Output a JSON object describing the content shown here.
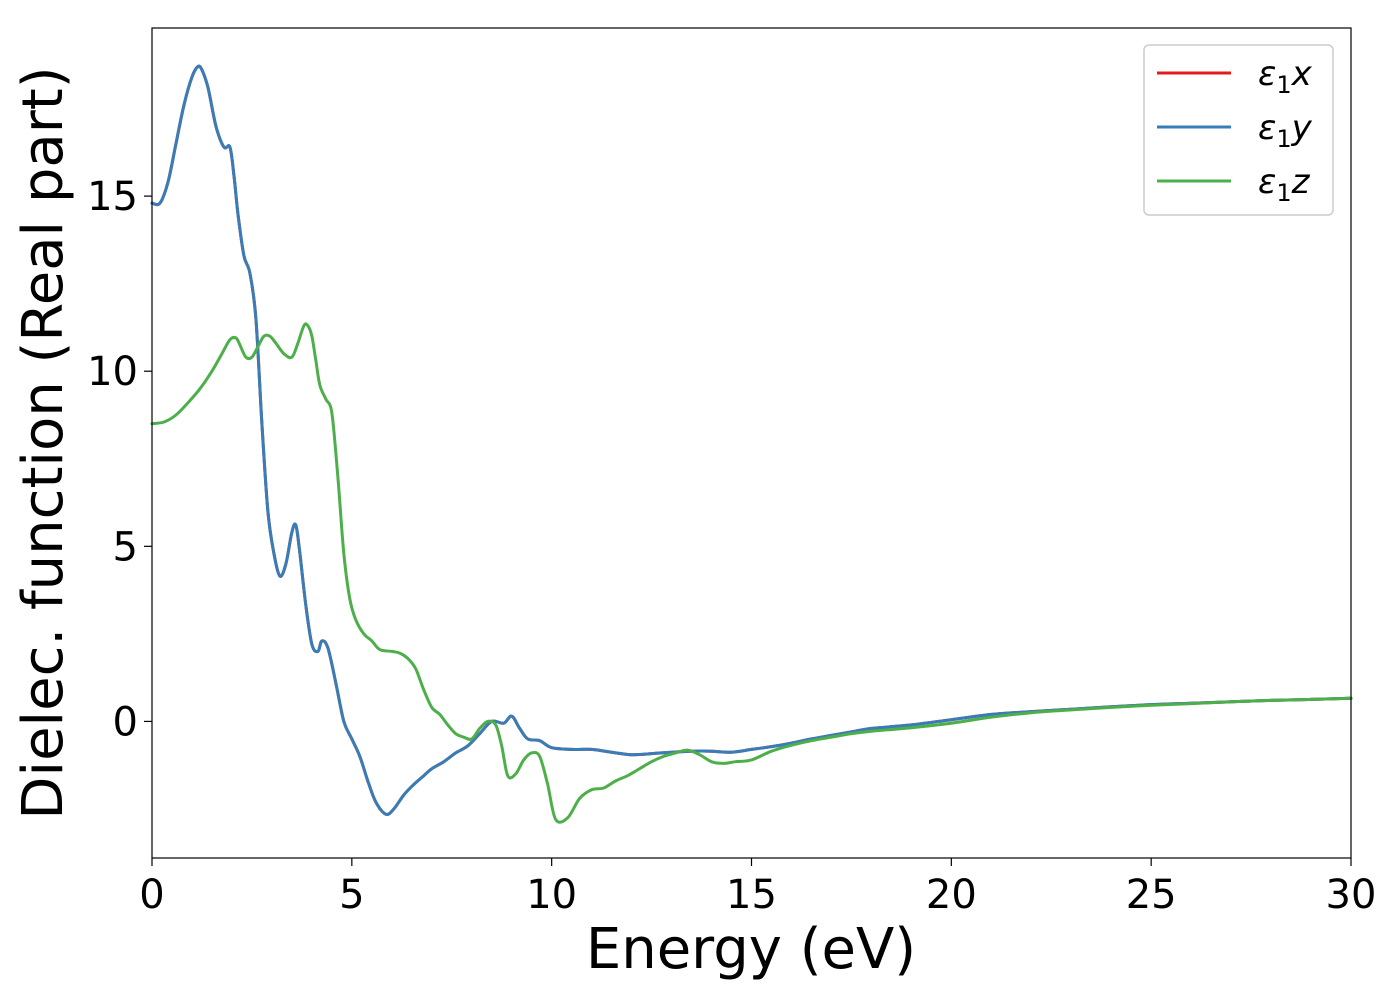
{
  "chart_data": {
    "type": "line",
    "xlabel": "Energy (eV)",
    "ylabel": "Dielec. function (Real part)",
    "xlim": [
      0,
      30
    ],
    "ylim": [
      -3.9,
      19.8
    ],
    "xticks": [
      0,
      5,
      10,
      15,
      20,
      25,
      30
    ],
    "yticks": [
      0,
      5,
      10,
      15
    ],
    "grid": false,
    "legend_position": "top-right",
    "series": [
      {
        "name": "ε1x",
        "name_base": "ε",
        "name_sub": "1",
        "name_tail": "x",
        "color": "#e41a1c",
        "x": [
          0,
          0.2,
          0.4,
          0.6,
          0.8,
          1.0,
          1.15,
          1.25,
          1.4,
          1.6,
          1.8,
          1.95,
          2.05,
          2.15,
          2.3,
          2.45,
          2.6,
          2.75,
          2.9,
          3.05,
          3.2,
          3.35,
          3.5,
          3.6,
          3.7,
          3.85,
          4.0,
          4.15,
          4.25,
          4.4,
          4.6,
          4.8,
          5.0,
          5.2,
          5.4,
          5.6,
          5.85,
          6.05,
          6.3,
          6.55,
          6.8,
          7.0,
          7.3,
          7.6,
          7.9,
          8.2,
          8.5,
          8.8,
          9.0,
          9.2,
          9.4,
          9.7,
          10.0,
          10.5,
          11.0,
          11.5,
          12.0,
          12.5,
          13.0,
          13.5,
          14.0,
          14.5,
          15.0,
          15.5,
          16.0,
          16.5,
          17.0,
          17.5,
          18.0,
          19.0,
          20.0,
          21.0,
          22.0,
          23.0,
          24.0,
          25.0,
          26.0,
          27.0,
          28.0,
          29.0,
          30.0
        ],
        "y": [
          14.8,
          14.8,
          15.4,
          16.5,
          17.6,
          18.4,
          18.7,
          18.6,
          18.1,
          17.0,
          16.4,
          16.4,
          15.6,
          14.5,
          13.3,
          12.8,
          11.5,
          8.5,
          6.0,
          4.8,
          4.15,
          4.5,
          5.4,
          5.6,
          4.8,
          3.3,
          2.2,
          2.0,
          2.3,
          2.1,
          1.1,
          0.0,
          -0.5,
          -1.0,
          -1.7,
          -2.3,
          -2.65,
          -2.5,
          -2.1,
          -1.8,
          -1.55,
          -1.35,
          -1.15,
          -0.9,
          -0.7,
          -0.35,
          0.0,
          -0.05,
          0.15,
          -0.2,
          -0.5,
          -0.55,
          -0.75,
          -0.8,
          -0.8,
          -0.88,
          -0.95,
          -0.92,
          -0.88,
          -0.85,
          -0.85,
          -0.88,
          -0.8,
          -0.72,
          -0.62,
          -0.5,
          -0.4,
          -0.3,
          -0.2,
          -0.1,
          0.05,
          0.2,
          0.28,
          0.35,
          0.42,
          0.48,
          0.52,
          0.56,
          0.6,
          0.63,
          0.66
        ]
      },
      {
        "name": "ε1y",
        "name_base": "ε",
        "name_sub": "1",
        "name_tail": "y",
        "color": "#377eb8",
        "x": [
          0,
          0.2,
          0.4,
          0.6,
          0.8,
          1.0,
          1.15,
          1.25,
          1.4,
          1.6,
          1.8,
          1.95,
          2.05,
          2.15,
          2.3,
          2.45,
          2.6,
          2.75,
          2.9,
          3.05,
          3.2,
          3.35,
          3.5,
          3.6,
          3.7,
          3.85,
          4.0,
          4.15,
          4.25,
          4.4,
          4.6,
          4.8,
          5.0,
          5.2,
          5.4,
          5.6,
          5.85,
          6.05,
          6.3,
          6.55,
          6.8,
          7.0,
          7.3,
          7.6,
          7.9,
          8.2,
          8.5,
          8.8,
          9.0,
          9.2,
          9.4,
          9.7,
          10.0,
          10.5,
          11.0,
          11.5,
          12.0,
          12.5,
          13.0,
          13.5,
          14.0,
          14.5,
          15.0,
          15.5,
          16.0,
          16.5,
          17.0,
          17.5,
          18.0,
          19.0,
          20.0,
          21.0,
          22.0,
          23.0,
          24.0,
          25.0,
          26.0,
          27.0,
          28.0,
          29.0,
          30.0
        ],
        "y": [
          14.8,
          14.8,
          15.4,
          16.5,
          17.6,
          18.4,
          18.7,
          18.6,
          18.1,
          17.0,
          16.4,
          16.4,
          15.6,
          14.5,
          13.3,
          12.8,
          11.5,
          8.5,
          6.0,
          4.8,
          4.15,
          4.5,
          5.4,
          5.6,
          4.8,
          3.3,
          2.2,
          2.0,
          2.3,
          2.1,
          1.1,
          0.0,
          -0.5,
          -1.0,
          -1.7,
          -2.3,
          -2.65,
          -2.5,
          -2.1,
          -1.8,
          -1.55,
          -1.35,
          -1.15,
          -0.9,
          -0.7,
          -0.35,
          0.0,
          -0.05,
          0.15,
          -0.2,
          -0.5,
          -0.55,
          -0.75,
          -0.8,
          -0.8,
          -0.88,
          -0.95,
          -0.92,
          -0.88,
          -0.85,
          -0.85,
          -0.88,
          -0.8,
          -0.72,
          -0.62,
          -0.5,
          -0.4,
          -0.3,
          -0.2,
          -0.1,
          0.05,
          0.2,
          0.28,
          0.35,
          0.42,
          0.48,
          0.52,
          0.56,
          0.6,
          0.63,
          0.66
        ]
      },
      {
        "name": "ε1z",
        "name_base": "ε",
        "name_sub": "1",
        "name_tail": "z",
        "color": "#4daf4a",
        "x": [
          0,
          0.3,
          0.6,
          0.9,
          1.2,
          1.5,
          1.75,
          1.95,
          2.1,
          2.2,
          2.35,
          2.5,
          2.65,
          2.8,
          2.95,
          3.1,
          3.3,
          3.5,
          3.65,
          3.8,
          3.9,
          4.0,
          4.1,
          4.2,
          4.35,
          4.5,
          4.65,
          4.8,
          4.95,
          5.1,
          5.3,
          5.5,
          5.7,
          6.0,
          6.2,
          6.4,
          6.6,
          6.8,
          7.0,
          7.2,
          7.4,
          7.6,
          7.8,
          8.0,
          8.2,
          8.4,
          8.6,
          8.75,
          8.9,
          9.1,
          9.3,
          9.5,
          9.7,
          9.9,
          10.1,
          10.4,
          10.7,
          11.0,
          11.3,
          11.6,
          11.9,
          12.2,
          12.5,
          12.8,
          13.1,
          13.4,
          13.7,
          14.0,
          14.3,
          14.6,
          15.0,
          15.5,
          16.0,
          16.5,
          17.0,
          17.5,
          18.0,
          19.0,
          20.0,
          21.0,
          22.0,
          23.0,
          24.0,
          25.0,
          26.0,
          27.0,
          28.0,
          29.0,
          30.0
        ],
        "y": [
          8.5,
          8.55,
          8.75,
          9.1,
          9.5,
          10.0,
          10.5,
          10.9,
          10.95,
          10.75,
          10.4,
          10.4,
          10.7,
          11.0,
          11.0,
          10.8,
          10.5,
          10.4,
          10.8,
          11.3,
          11.3,
          11.0,
          10.3,
          9.6,
          9.2,
          8.8,
          7.0,
          4.8,
          3.5,
          2.9,
          2.5,
          2.3,
          2.05,
          2.0,
          1.95,
          1.8,
          1.5,
          0.9,
          0.4,
          0.2,
          -0.1,
          -0.35,
          -0.45,
          -0.5,
          -0.2,
          0.0,
          -0.1,
          -0.7,
          -1.55,
          -1.5,
          -1.1,
          -0.9,
          -1.0,
          -1.8,
          -2.8,
          -2.75,
          -2.2,
          -1.95,
          -1.9,
          -1.7,
          -1.55,
          -1.35,
          -1.15,
          -1.0,
          -0.9,
          -0.82,
          -0.95,
          -1.15,
          -1.2,
          -1.15,
          -1.1,
          -0.85,
          -0.68,
          -0.55,
          -0.45,
          -0.35,
          -0.28,
          -0.18,
          -0.05,
          0.12,
          0.25,
          0.33,
          0.4,
          0.46,
          0.51,
          0.56,
          0.6,
          0.63,
          0.66
        ]
      }
    ]
  }
}
